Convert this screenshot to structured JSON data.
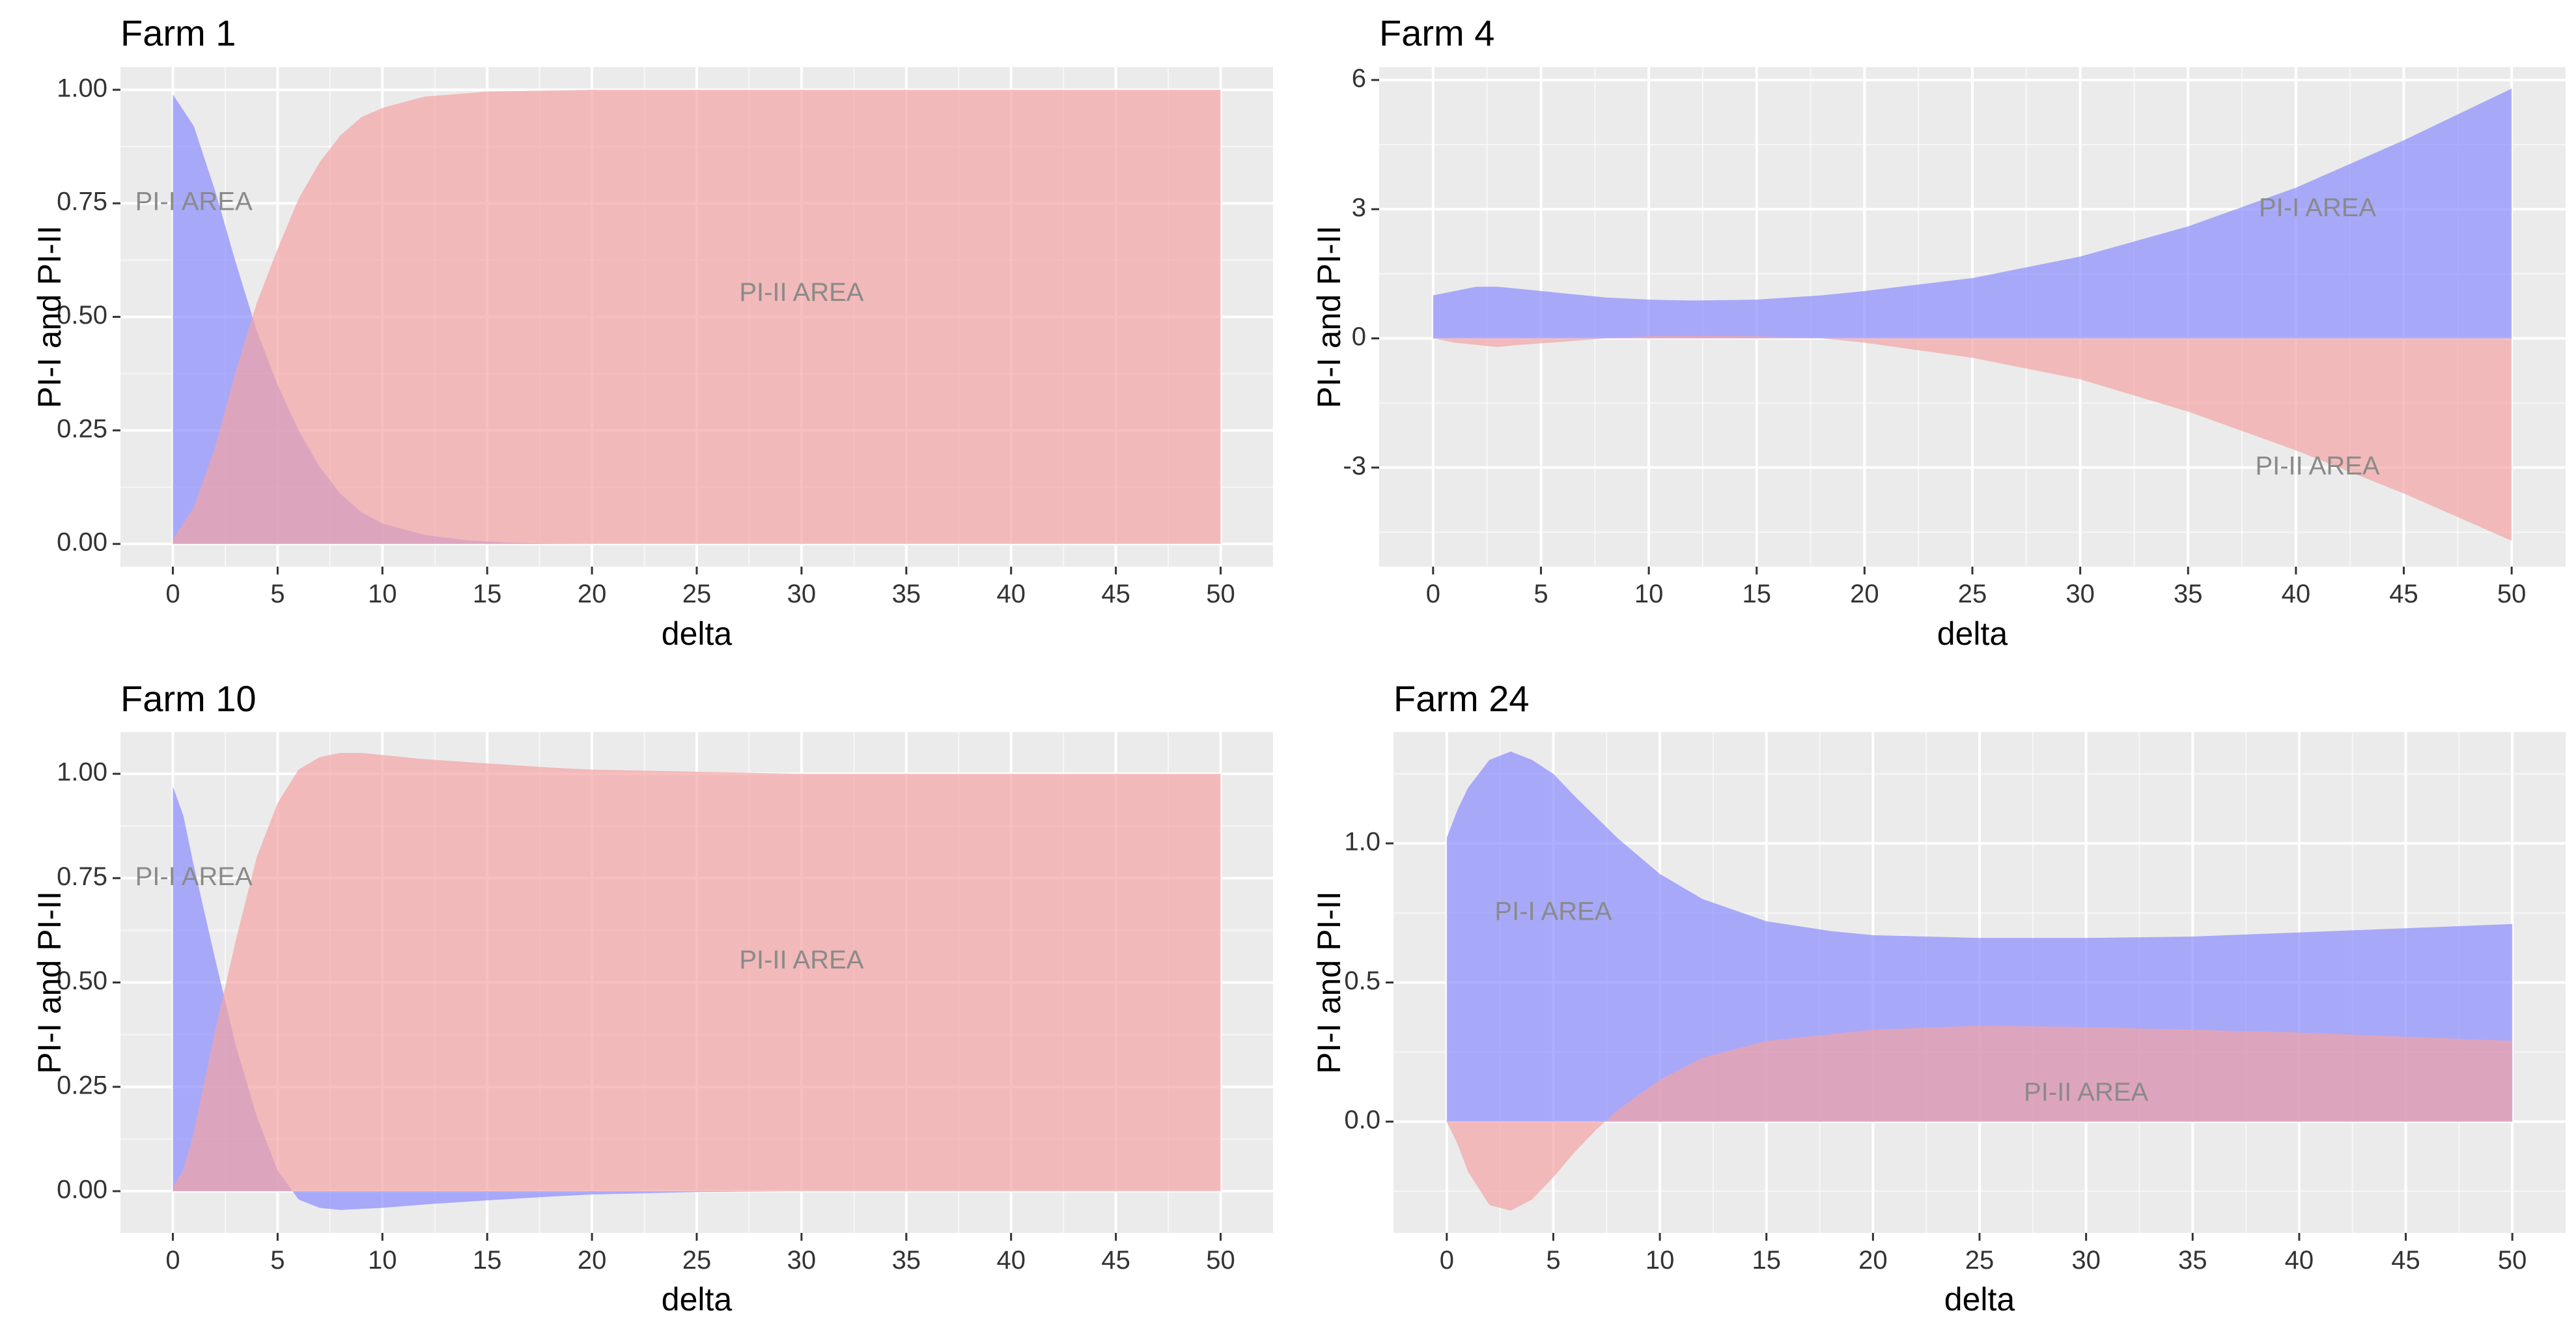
{
  "colors": {
    "panel_bg": "#EBEBEB",
    "grid_major": "#FFFFFF",
    "pi1_fill": "#8C8CFF",
    "pi2_fill": "#F4A4A4",
    "tick_text": "#333333",
    "annotation_text": "#8A8A8A"
  },
  "chart_data": [
    {
      "id": "farm1",
      "type": "area",
      "title": "Farm 1",
      "xlabel": "delta",
      "ylabel": "PI-I and PI-II",
      "xlim": [
        -2.5,
        52.5
      ],
      "ylim": [
        -0.05,
        1.05
      ],
      "xticks": [
        0,
        5,
        10,
        15,
        20,
        25,
        30,
        35,
        40,
        45,
        50
      ],
      "xtick_labels": [
        "0",
        "5",
        "10",
        "15",
        "20",
        "25",
        "30",
        "35",
        "40",
        "45",
        "50"
      ],
      "yticks": [
        0,
        0.25,
        0.5,
        0.75,
        1.0
      ],
      "ytick_labels": [
        "0.00",
        "0.25",
        "0.50",
        "0.75",
        "1.00"
      ],
      "series": [
        {
          "name": "PI-I",
          "color": "#8C8CFF",
          "points": [
            [
              0,
              0.99
            ],
            [
              1,
              0.92
            ],
            [
              2,
              0.78
            ],
            [
              3,
              0.62
            ],
            [
              4,
              0.47
            ],
            [
              5,
              0.35
            ],
            [
              6,
              0.25
            ],
            [
              7,
              0.17
            ],
            [
              8,
              0.11
            ],
            [
              9,
              0.07
            ],
            [
              10,
              0.045
            ],
            [
              12,
              0.02
            ],
            [
              14,
              0.008
            ],
            [
              16,
              0.003
            ],
            [
              18,
              0.001
            ],
            [
              20,
              0
            ],
            [
              50,
              0
            ]
          ]
        },
        {
          "name": "PI-II",
          "color": "#F4A4A4",
          "points": [
            [
              0,
              0.01
            ],
            [
              1,
              0.08
            ],
            [
              2,
              0.21
            ],
            [
              3,
              0.38
            ],
            [
              4,
              0.53
            ],
            [
              5,
              0.65
            ],
            [
              6,
              0.76
            ],
            [
              7,
              0.84
            ],
            [
              8,
              0.9
            ],
            [
              9,
              0.94
            ],
            [
              10,
              0.96
            ],
            [
              12,
              0.985
            ],
            [
              15,
              0.996
            ],
            [
              20,
              1.0
            ],
            [
              50,
              1.0
            ]
          ]
        }
      ],
      "annotations": [
        {
          "text": "PI-I AREA",
          "x": 1,
          "y": 0.75
        },
        {
          "text": "PI-II AREA",
          "x": 30,
          "y": 0.55
        }
      ]
    },
    {
      "id": "farm4",
      "type": "area",
      "title": "Farm 4",
      "xlabel": "delta",
      "ylabel": "PI-I and PI-II",
      "xlim": [
        -2.5,
        52.5
      ],
      "ylim": [
        -5.3,
        6.3
      ],
      "xticks": [
        0,
        5,
        10,
        15,
        20,
        25,
        30,
        35,
        40,
        45,
        50
      ],
      "xtick_labels": [
        "0",
        "5",
        "10",
        "15",
        "20",
        "25",
        "30",
        "35",
        "40",
        "45",
        "50"
      ],
      "yticks": [
        -3,
        0,
        3,
        6
      ],
      "ytick_labels": [
        "-3",
        "0",
        "3",
        "6"
      ],
      "series": [
        {
          "name": "PI-I",
          "color": "#8C8CFF",
          "points": [
            [
              0,
              1.0
            ],
            [
              1,
              1.1
            ],
            [
              2,
              1.2
            ],
            [
              3,
              1.2
            ],
            [
              4,
              1.15
            ],
            [
              6,
              1.05
            ],
            [
              8,
              0.95
            ],
            [
              10,
              0.9
            ],
            [
              12,
              0.88
            ],
            [
              15,
              0.9
            ],
            [
              18,
              1.0
            ],
            [
              20,
              1.1
            ],
            [
              25,
              1.4
            ],
            [
              30,
              1.9
            ],
            [
              35,
              2.6
            ],
            [
              40,
              3.5
            ],
            [
              45,
              4.6
            ],
            [
              50,
              5.8
            ]
          ]
        },
        {
          "name": "PI-II",
          "color": "#F4A4A4",
          "points": [
            [
              0,
              0
            ],
            [
              1,
              -0.1
            ],
            [
              2,
              -0.15
            ],
            [
              3,
              -0.2
            ],
            [
              4,
              -0.15
            ],
            [
              6,
              -0.08
            ],
            [
              8,
              0
            ],
            [
              10,
              0.05
            ],
            [
              12,
              0.06
            ],
            [
              15,
              0.05
            ],
            [
              18,
              0
            ],
            [
              20,
              -0.1
            ],
            [
              25,
              -0.45
            ],
            [
              30,
              -0.95
            ],
            [
              35,
              -1.7
            ],
            [
              40,
              -2.6
            ],
            [
              45,
              -3.6
            ],
            [
              50,
              -4.7
            ]
          ]
        }
      ],
      "annotations": [
        {
          "text": "PI-I AREA",
          "x": 41,
          "y": 3.0
        },
        {
          "text": "PI-II AREA",
          "x": 41,
          "y": -3.0
        }
      ]
    },
    {
      "id": "farm10",
      "type": "area",
      "title": "Farm 10",
      "xlabel": "delta",
      "ylabel": "PI-I and PI-II",
      "xlim": [
        -2.5,
        52.5
      ],
      "ylim": [
        -0.1,
        1.1
      ],
      "xticks": [
        0,
        5,
        10,
        15,
        20,
        25,
        30,
        35,
        40,
        45,
        50
      ],
      "xtick_labels": [
        "0",
        "5",
        "10",
        "15",
        "20",
        "25",
        "30",
        "35",
        "40",
        "45",
        "50"
      ],
      "yticks": [
        0,
        0.25,
        0.5,
        0.75,
        1.0
      ],
      "ytick_labels": [
        "0.00",
        "0.25",
        "0.50",
        "0.75",
        "1.00"
      ],
      "series": [
        {
          "name": "PI-I",
          "color": "#8C8CFF",
          "points": [
            [
              0,
              0.97
            ],
            [
              0.5,
              0.9
            ],
            [
              1,
              0.78
            ],
            [
              2,
              0.56
            ],
            [
              3,
              0.35
            ],
            [
              4,
              0.18
            ],
            [
              5,
              0.05
            ],
            [
              6,
              -0.02
            ],
            [
              7,
              -0.04
            ],
            [
              8,
              -0.045
            ],
            [
              10,
              -0.04
            ],
            [
              12,
              -0.032
            ],
            [
              15,
              -0.022
            ],
            [
              18,
              -0.013
            ],
            [
              20,
              -0.008
            ],
            [
              25,
              -0.002
            ],
            [
              30,
              0
            ],
            [
              50,
              0
            ]
          ]
        },
        {
          "name": "PI-II",
          "color": "#F4A4A4",
          "points": [
            [
              0,
              0.01
            ],
            [
              0.5,
              0.05
            ],
            [
              1,
              0.14
            ],
            [
              2,
              0.38
            ],
            [
              3,
              0.6
            ],
            [
              4,
              0.8
            ],
            [
              5,
              0.93
            ],
            [
              6,
              1.01
            ],
            [
              7,
              1.04
            ],
            [
              8,
              1.05
            ],
            [
              9,
              1.05
            ],
            [
              10,
              1.045
            ],
            [
              12,
              1.035
            ],
            [
              15,
              1.025
            ],
            [
              18,
              1.015
            ],
            [
              20,
              1.01
            ],
            [
              25,
              1.005
            ],
            [
              30,
              1.0
            ],
            [
              50,
              1.0
            ]
          ]
        }
      ],
      "annotations": [
        {
          "text": "PI-I AREA",
          "x": 1,
          "y": 0.75
        },
        {
          "text": "PI-II AREA",
          "x": 30,
          "y": 0.55
        }
      ]
    },
    {
      "id": "farm24",
      "type": "area",
      "title": "Farm 24",
      "xlabel": "delta",
      "ylabel": "PI-I and PI-II",
      "xlim": [
        -2.5,
        52.5
      ],
      "ylim": [
        -0.4,
        1.4
      ],
      "xticks": [
        0,
        5,
        10,
        15,
        20,
        25,
        30,
        35,
        40,
        45,
        50
      ],
      "xtick_labels": [
        "0",
        "5",
        "10",
        "15",
        "20",
        "25",
        "30",
        "35",
        "40",
        "45",
        "50"
      ],
      "yticks": [
        0,
        0.5,
        1.0
      ],
      "ytick_labels": [
        "0.0",
        "0.5",
        "1.0"
      ],
      "series": [
        {
          "name": "PI-I",
          "color": "#8C8CFF",
          "points": [
            [
              0,
              1.02
            ],
            [
              0.5,
              1.12
            ],
            [
              1,
              1.2
            ],
            [
              2,
              1.3
            ],
            [
              3,
              1.33
            ],
            [
              4,
              1.3
            ],
            [
              5,
              1.25
            ],
            [
              6,
              1.17
            ],
            [
              8,
              1.02
            ],
            [
              10,
              0.89
            ],
            [
              12,
              0.8
            ],
            [
              15,
              0.72
            ],
            [
              18,
              0.685
            ],
            [
              20,
              0.67
            ],
            [
              25,
              0.66
            ],
            [
              30,
              0.66
            ],
            [
              35,
              0.665
            ],
            [
              40,
              0.68
            ],
            [
              45,
              0.695
            ],
            [
              50,
              0.71
            ]
          ]
        },
        {
          "name": "PI-II",
          "color": "#F4A4A4",
          "points": [
            [
              0,
              0
            ],
            [
              0.5,
              -0.08
            ],
            [
              1,
              -0.18
            ],
            [
              2,
              -0.3
            ],
            [
              3,
              -0.32
            ],
            [
              4,
              -0.28
            ],
            [
              5,
              -0.2
            ],
            [
              6,
              -0.11
            ],
            [
              7,
              -0.03
            ],
            [
              8,
              0.04
            ],
            [
              10,
              0.15
            ],
            [
              12,
              0.23
            ],
            [
              15,
              0.29
            ],
            [
              20,
              0.33
            ],
            [
              25,
              0.345
            ],
            [
              30,
              0.34
            ],
            [
              35,
              0.33
            ],
            [
              40,
              0.32
            ],
            [
              45,
              0.305
            ],
            [
              50,
              0.29
            ]
          ]
        }
      ],
      "annotations": [
        {
          "text": "PI-I AREA",
          "x": 5,
          "y": 0.75
        },
        {
          "text": "PI-II AREA",
          "x": 30,
          "y": 0.1
        }
      ]
    }
  ]
}
